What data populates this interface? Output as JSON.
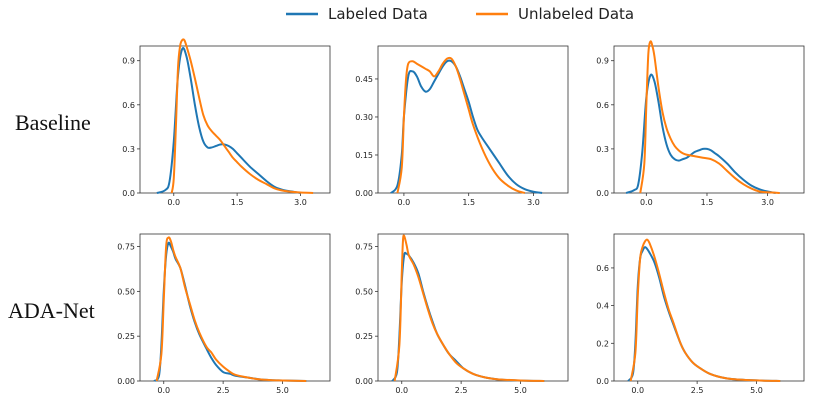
{
  "figure": {
    "legend": [
      {
        "label": "Labeled Data",
        "color": "#1f77b4"
      },
      {
        "label": "Unlabeled Data",
        "color": "#ff7f0e"
      }
    ],
    "row_labels": [
      "Baseline",
      "ADA-Net"
    ]
  },
  "chart_data": [
    {
      "type": "line",
      "row": "Baseline",
      "col": 1,
      "xlim": [
        -0.8,
        3.7
      ],
      "ylim": [
        0,
        1.0
      ],
      "xticks": [
        0.0,
        1.5,
        3.0
      ],
      "xtick_labels": [
        "0.0",
        "1.5",
        "3.0"
      ],
      "yticks": [
        0.0,
        0.3,
        0.6,
        0.9
      ],
      "ytick_labels": [
        "0.0",
        "0.3",
        "0.6",
        "0.9"
      ],
      "series": [
        {
          "name": "Labeled Data",
          "x": [
            -0.4,
            -0.2,
            -0.1,
            0.0,
            0.1,
            0.2,
            0.3,
            0.4,
            0.5,
            0.6,
            0.7,
            0.8,
            0.9,
            1.0,
            1.1,
            1.2,
            1.3,
            1.4,
            1.5,
            1.6,
            1.8,
            2.0,
            2.2,
            2.4,
            2.6,
            2.8,
            3.0
          ],
          "y": [
            0.0,
            0.02,
            0.08,
            0.35,
            0.8,
            0.98,
            0.93,
            0.78,
            0.6,
            0.45,
            0.35,
            0.31,
            0.31,
            0.32,
            0.33,
            0.33,
            0.32,
            0.3,
            0.27,
            0.24,
            0.18,
            0.13,
            0.08,
            0.04,
            0.02,
            0.01,
            0.0
          ]
        },
        {
          "name": "Unlabeled Data",
          "x": [
            -0.05,
            0.0,
            0.05,
            0.1,
            0.15,
            0.2,
            0.25,
            0.3,
            0.4,
            0.5,
            0.6,
            0.7,
            0.8,
            0.9,
            1.0,
            1.1,
            1.2,
            1.3,
            1.4,
            1.5,
            1.6,
            1.8,
            2.0,
            2.2,
            2.4,
            2.6,
            2.8,
            3.0,
            3.3
          ],
          "y": [
            0.0,
            0.1,
            0.45,
            0.85,
            1.0,
            1.04,
            1.04,
            1.0,
            0.9,
            0.78,
            0.65,
            0.53,
            0.46,
            0.42,
            0.39,
            0.36,
            0.32,
            0.28,
            0.24,
            0.21,
            0.18,
            0.13,
            0.09,
            0.06,
            0.03,
            0.015,
            0.008,
            0.003,
            0.0
          ]
        }
      ]
    },
    {
      "type": "line",
      "row": "Baseline",
      "col": 2,
      "xlim": [
        -0.6,
        3.8
      ],
      "ylim": [
        0,
        0.58
      ],
      "xticks": [
        0.0,
        1.5,
        3.0
      ],
      "xtick_labels": [
        "0.0",
        "1.5",
        "3.0"
      ],
      "yticks": [
        0.0,
        0.15,
        0.3,
        0.45
      ],
      "ytick_labels": [
        "0.00",
        "0.15",
        "0.30",
        "0.45"
      ],
      "series": [
        {
          "name": "Labeled Data",
          "x": [
            -0.3,
            -0.15,
            -0.05,
            0.0,
            0.1,
            0.2,
            0.3,
            0.4,
            0.5,
            0.6,
            0.7,
            0.8,
            0.9,
            1.0,
            1.1,
            1.2,
            1.3,
            1.4,
            1.5,
            1.6,
            1.7,
            1.8,
            2.0,
            2.2,
            2.4,
            2.6,
            2.8,
            3.0,
            3.2
          ],
          "y": [
            0.0,
            0.03,
            0.15,
            0.3,
            0.46,
            0.48,
            0.46,
            0.42,
            0.4,
            0.41,
            0.44,
            0.47,
            0.5,
            0.52,
            0.52,
            0.5,
            0.46,
            0.41,
            0.36,
            0.3,
            0.25,
            0.22,
            0.17,
            0.12,
            0.07,
            0.035,
            0.015,
            0.005,
            0.0
          ]
        },
        {
          "name": "Unlabeled Data",
          "x": [
            -0.15,
            -0.05,
            0.0,
            0.05,
            0.1,
            0.2,
            0.3,
            0.4,
            0.5,
            0.6,
            0.7,
            0.8,
            0.9,
            1.0,
            1.1,
            1.2,
            1.3,
            1.4,
            1.5,
            1.6,
            1.8,
            2.0,
            2.2,
            2.4,
            2.6,
            2.8
          ],
          "y": [
            0.0,
            0.1,
            0.3,
            0.45,
            0.51,
            0.52,
            0.51,
            0.5,
            0.49,
            0.48,
            0.46,
            0.48,
            0.51,
            0.53,
            0.53,
            0.5,
            0.45,
            0.39,
            0.33,
            0.27,
            0.18,
            0.11,
            0.06,
            0.03,
            0.01,
            0.0
          ]
        }
      ]
    },
    {
      "type": "line",
      "row": "Baseline",
      "col": 3,
      "xlim": [
        -0.8,
        3.9
      ],
      "ylim": [
        0,
        1.0
      ],
      "xticks": [
        0.0,
        1.5,
        3.0
      ],
      "xtick_labels": [
        "0.0",
        "1.5",
        "3.0"
      ],
      "yticks": [
        0.0,
        0.3,
        0.6,
        0.9
      ],
      "ytick_labels": [
        "0.0",
        "0.3",
        "0.6",
        "0.9"
      ],
      "series": [
        {
          "name": "Labeled Data",
          "x": [
            -0.5,
            -0.3,
            -0.2,
            -0.1,
            0.0,
            0.1,
            0.2,
            0.3,
            0.4,
            0.5,
            0.6,
            0.7,
            0.8,
            0.9,
            1.0,
            1.1,
            1.2,
            1.3,
            1.4,
            1.5,
            1.6,
            1.7,
            1.8,
            2.0,
            2.2,
            2.4,
            2.6,
            2.8,
            3.0,
            3.2
          ],
          "y": [
            0.0,
            0.02,
            0.06,
            0.28,
            0.65,
            0.8,
            0.76,
            0.62,
            0.45,
            0.33,
            0.26,
            0.23,
            0.22,
            0.23,
            0.24,
            0.26,
            0.28,
            0.29,
            0.3,
            0.3,
            0.29,
            0.27,
            0.25,
            0.2,
            0.14,
            0.09,
            0.05,
            0.025,
            0.01,
            0.0
          ]
        },
        {
          "name": "Unlabeled Data",
          "x": [
            -0.15,
            -0.05,
            0.0,
            0.05,
            0.1,
            0.15,
            0.2,
            0.3,
            0.4,
            0.5,
            0.6,
            0.7,
            0.8,
            0.9,
            1.0,
            1.2,
            1.4,
            1.6,
            1.8,
            2.0,
            2.2,
            2.4,
            2.6,
            2.8,
            3.0,
            3.3
          ],
          "y": [
            0.0,
            0.2,
            0.6,
            0.95,
            1.03,
            1.0,
            0.93,
            0.72,
            0.55,
            0.44,
            0.37,
            0.32,
            0.29,
            0.27,
            0.26,
            0.25,
            0.24,
            0.23,
            0.2,
            0.15,
            0.1,
            0.06,
            0.03,
            0.01,
            0.005,
            0.0
          ]
        }
      ]
    },
    {
      "type": "line",
      "row": "ADA-Net",
      "col": 1,
      "xlim": [
        -1.0,
        7.0
      ],
      "ylim": [
        0,
        0.82
      ],
      "xticks": [
        0.0,
        2.5,
        5.0
      ],
      "xtick_labels": [
        "0.0",
        "2.5",
        "5.0"
      ],
      "yticks": [
        0.0,
        0.25,
        0.5,
        0.75
      ],
      "ytick_labels": [
        "0.00",
        "0.25",
        "0.50",
        "0.75"
      ],
      "series": [
        {
          "name": "Labeled Data",
          "x": [
            -0.4,
            -0.2,
            -0.1,
            0.0,
            0.1,
            0.2,
            0.3,
            0.4,
            0.5,
            0.7,
            0.9,
            1.1,
            1.3,
            1.5,
            1.8,
            2.0,
            2.2,
            2.5,
            2.8,
            3.0,
            3.5,
            4.0,
            4.5,
            5.0,
            6.0
          ],
          "y": [
            0.0,
            0.03,
            0.2,
            0.5,
            0.7,
            0.77,
            0.75,
            0.72,
            0.68,
            0.63,
            0.53,
            0.42,
            0.33,
            0.26,
            0.18,
            0.13,
            0.09,
            0.05,
            0.04,
            0.03,
            0.02,
            0.01,
            0.005,
            0.003,
            0.0
          ]
        },
        {
          "name": "Unlabeled Data",
          "x": [
            -0.3,
            -0.1,
            0.0,
            0.1,
            0.2,
            0.3,
            0.4,
            0.5,
            0.7,
            0.9,
            1.1,
            1.3,
            1.5,
            1.8,
            2.0,
            2.2,
            2.5,
            2.8,
            3.0,
            3.5,
            4.0,
            4.5,
            5.0,
            6.0
          ],
          "y": [
            0.0,
            0.15,
            0.45,
            0.75,
            0.8,
            0.78,
            0.73,
            0.69,
            0.63,
            0.52,
            0.43,
            0.34,
            0.27,
            0.19,
            0.16,
            0.12,
            0.08,
            0.05,
            0.035,
            0.02,
            0.01,
            0.005,
            0.003,
            0.0
          ]
        }
      ]
    },
    {
      "type": "line",
      "row": "ADA-Net",
      "col": 2,
      "xlim": [
        -1.0,
        7.0
      ],
      "ylim": [
        0,
        0.82
      ],
      "xticks": [
        0.0,
        2.5,
        5.0
      ],
      "xtick_labels": [
        "0.0",
        "2.5",
        "5.0"
      ],
      "yticks": [
        0.0,
        0.25,
        0.5,
        0.75
      ],
      "ytick_labels": [
        "0.00",
        "0.25",
        "0.50",
        "0.75"
      ],
      "series": [
        {
          "name": "Labeled Data",
          "x": [
            -0.4,
            -0.2,
            -0.1,
            0.0,
            0.1,
            0.2,
            0.3,
            0.5,
            0.7,
            0.9,
            1.1,
            1.3,
            1.5,
            1.8,
            2.0,
            2.3,
            2.6,
            3.0,
            3.5,
            4.0,
            4.5,
            5.0,
            6.0
          ],
          "y": [
            0.0,
            0.05,
            0.25,
            0.55,
            0.7,
            0.71,
            0.7,
            0.66,
            0.6,
            0.5,
            0.41,
            0.33,
            0.26,
            0.19,
            0.15,
            0.11,
            0.07,
            0.04,
            0.02,
            0.01,
            0.005,
            0.002,
            0.0
          ]
        },
        {
          "name": "Unlabeled Data",
          "x": [
            -0.3,
            -0.1,
            0.0,
            0.05,
            0.1,
            0.2,
            0.3,
            0.5,
            0.7,
            0.9,
            1.1,
            1.3,
            1.5,
            1.8,
            2.0,
            2.3,
            2.6,
            3.0,
            3.5,
            4.0,
            5.0,
            6.0
          ],
          "y": [
            0.0,
            0.2,
            0.6,
            0.78,
            0.81,
            0.76,
            0.7,
            0.65,
            0.58,
            0.49,
            0.4,
            0.32,
            0.26,
            0.19,
            0.15,
            0.1,
            0.07,
            0.04,
            0.02,
            0.01,
            0.003,
            0.0
          ]
        }
      ]
    },
    {
      "type": "line",
      "row": "ADA-Net",
      "col": 3,
      "xlim": [
        -1.0,
        7.0
      ],
      "ylim": [
        0,
        0.78
      ],
      "xticks": [
        0.0,
        2.5,
        5.0
      ],
      "xtick_labels": [
        "0.0",
        "2.5",
        "5.0"
      ],
      "yticks": [
        0.0,
        0.2,
        0.4,
        0.6
      ],
      "ytick_labels": [
        "0.0",
        "0.2",
        "0.4",
        "0.6"
      ],
      "series": [
        {
          "name": "Labeled Data",
          "x": [
            -0.4,
            -0.2,
            -0.1,
            0.0,
            0.1,
            0.2,
            0.3,
            0.4,
            0.5,
            0.7,
            0.9,
            1.1,
            1.3,
            1.5,
            1.8,
            2.0,
            2.3,
            2.6,
            3.0,
            3.5,
            4.0,
            5.0,
            6.0
          ],
          "y": [
            0.0,
            0.04,
            0.2,
            0.5,
            0.65,
            0.69,
            0.71,
            0.7,
            0.68,
            0.63,
            0.55,
            0.45,
            0.37,
            0.3,
            0.2,
            0.15,
            0.1,
            0.07,
            0.04,
            0.02,
            0.01,
            0.003,
            0.0
          ]
        },
        {
          "name": "Unlabeled Data",
          "x": [
            -0.3,
            -0.1,
            0.0,
            0.1,
            0.2,
            0.3,
            0.4,
            0.5,
            0.7,
            0.9,
            1.1,
            1.3,
            1.5,
            1.8,
            2.0,
            2.3,
            2.6,
            3.0,
            3.5,
            4.0,
            5.0,
            6.0
          ],
          "y": [
            0.0,
            0.15,
            0.45,
            0.65,
            0.71,
            0.74,
            0.75,
            0.73,
            0.66,
            0.57,
            0.47,
            0.38,
            0.31,
            0.2,
            0.15,
            0.1,
            0.07,
            0.04,
            0.02,
            0.01,
            0.003,
            0.0
          ]
        }
      ]
    }
  ]
}
